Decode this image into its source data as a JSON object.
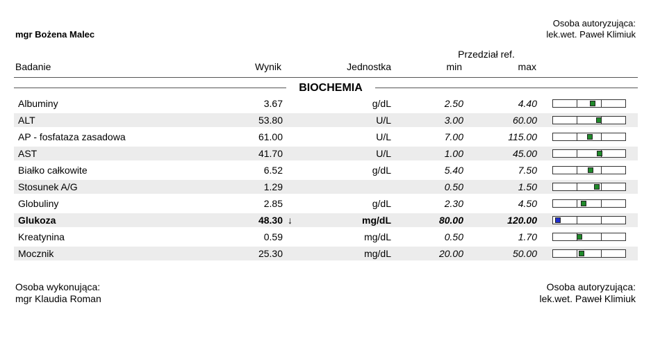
{
  "header": {
    "left": "mgr Bożena Malec",
    "right_label": "Osoba autoryzująca:",
    "right_name": "lek.wet. Paweł Klimiuk"
  },
  "table": {
    "columns": {
      "test": "Badanie",
      "result": "Wynik",
      "unit": "Jednostka",
      "ref": "Przedział ref.",
      "min": "min",
      "max": "max"
    },
    "section": "BIOCHEMIA",
    "rows": [
      {
        "test": "Albuminy",
        "result": "3.67",
        "unit": "g/dL",
        "min": "2.50",
        "max": "4.40"
      },
      {
        "test": "ALT",
        "result": "53.80",
        "unit": "U/L",
        "min": "3.00",
        "max": "60.00"
      },
      {
        "test": "AP - fosfataza zasadowa",
        "result": "61.00",
        "unit": "U/L",
        "min": "7.00",
        "max": "115.00"
      },
      {
        "test": "AST",
        "result": "41.70",
        "unit": "U/L",
        "min": "1.00",
        "max": "45.00"
      },
      {
        "test": "Białko całkowite",
        "result": "6.52",
        "unit": "g/dL",
        "min": "5.40",
        "max": "7.50"
      },
      {
        "test": "Stosunek A/G",
        "result": "1.29",
        "min": "0.50",
        "max": "1.50"
      },
      {
        "test": "Globuliny",
        "result": "2.85",
        "unit": "g/dL",
        "min": "2.30",
        "max": "4.50"
      },
      {
        "test": "Glukoza",
        "result": "48.30",
        "flag": "↓",
        "unit": "mg/dL",
        "min": "80.00",
        "max": "120.00"
      },
      {
        "test": "Kreatynina",
        "result": "0.59",
        "unit": "mg/dL",
        "min": "0.50",
        "max": "1.70"
      },
      {
        "test": "Mocznik",
        "result": "25.30",
        "unit": "mg/dL",
        "min": "20.00",
        "max": "50.00"
      }
    ]
  },
  "footer": {
    "left_label": "Osoba wykonująca:",
    "left_name": "mgr Klaudia Roman",
    "right_label": "Osoba autoryzująca:",
    "right_name": "lek.wet. Paweł Klimiuk"
  }
}
